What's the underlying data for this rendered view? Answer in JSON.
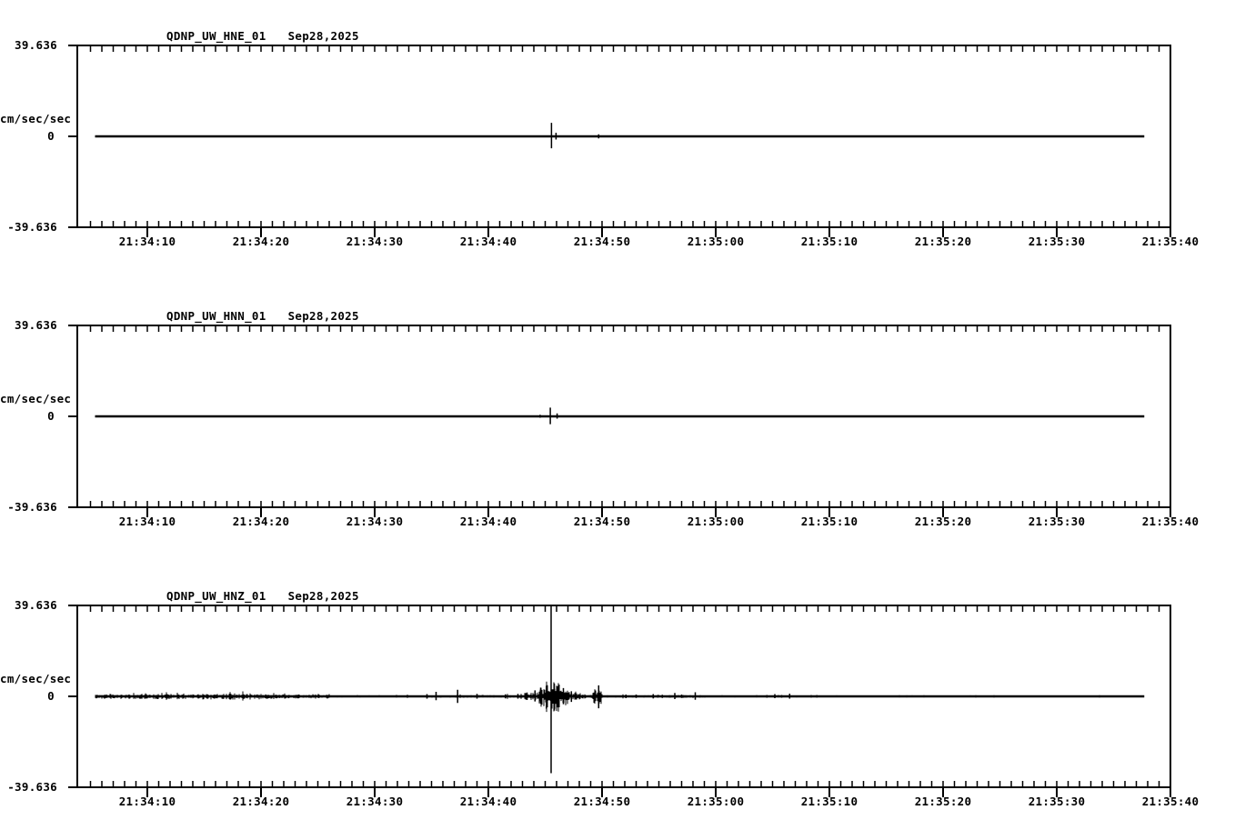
{
  "figure": {
    "background_color": "#ffffff",
    "ink_color": "#000000",
    "description": "Three-channel seismogram amplitude plot"
  },
  "y_axis": {
    "top": "39.636",
    "zero": "0",
    "bottom": "-39.636",
    "units": "cm/sec/sec",
    "ylim": [
      -39.636,
      39.636
    ]
  },
  "time_axis": {
    "reference": "21:34:00",
    "major_labels": [
      "21:34:10",
      "21:34:20",
      "21:34:30",
      "21:34:40",
      "21:34:50",
      "21:35:00",
      "21:35:10",
      "21:35:20",
      "21:35:30",
      "21:35:40"
    ],
    "major_seconds": [
      10,
      20,
      30,
      40,
      50,
      60,
      70,
      80,
      90,
      100
    ],
    "minor_step_s": 1,
    "visible_range_s": [
      3.84,
      100
    ]
  },
  "chart_data": [
    {
      "type": "line",
      "station": "QDNP_UW_HNE_01",
      "date": "Sep28,2025",
      "ylabel": "cm/sec/sec",
      "ylim": [
        -39.636,
        39.636
      ],
      "yticks": [
        "39.636",
        "0",
        "-39.636"
      ],
      "xticks": [
        "21:34:10",
        "21:34:20",
        "21:34:30",
        "21:34:40",
        "21:34:50",
        "21:35:00",
        "21:35:10",
        "21:35:20",
        "21:35:30",
        "21:35:40"
      ],
      "baseline_value": 0,
      "trace_span_s": [
        5.4,
        97.7
      ],
      "noise_bands": [],
      "spikes": [
        {
          "t": 45.55,
          "up": 5.9,
          "down": 5.2
        },
        {
          "t": 45.95,
          "up": 1.6,
          "down": 1.4
        },
        {
          "t": 49.7,
          "up": 0.9,
          "down": 0.9
        }
      ]
    },
    {
      "type": "line",
      "station": "QDNP_UW_HNN_01",
      "date": "Sep28,2025",
      "ylabel": "cm/sec/sec",
      "ylim": [
        -39.636,
        39.636
      ],
      "yticks": [
        "39.636",
        "0",
        "-39.636"
      ],
      "xticks": [
        "21:34:10",
        "21:34:20",
        "21:34:30",
        "21:34:40",
        "21:34:50",
        "21:35:00",
        "21:35:10",
        "21:35:20",
        "21:35:30",
        "21:35:40"
      ],
      "baseline_value": 0,
      "trace_span_s": [
        5.4,
        97.7
      ],
      "noise_bands": [],
      "spikes": [
        {
          "t": 44.55,
          "up": 0.7,
          "down": 0.6
        },
        {
          "t": 45.45,
          "up": 3.8,
          "down": 3.4
        },
        {
          "t": 46.05,
          "up": 1.3,
          "down": 1.0
        }
      ]
    },
    {
      "type": "line",
      "station": "QDNP_UW_HNZ_01",
      "date": "Sep28,2025",
      "ylabel": "cm/sec/sec",
      "ylim": [
        -39.636,
        39.636
      ],
      "yticks": [
        "39.636",
        "0",
        "-39.636"
      ],
      "xticks": [
        "21:34:10",
        "21:34:20",
        "21:34:30",
        "21:34:40",
        "21:34:50",
        "21:35:00",
        "21:35:10",
        "21:35:20",
        "21:35:30",
        "21:35:40"
      ],
      "baseline_value": 0,
      "trace_span_s": [
        5.4,
        97.7
      ],
      "noise_bands": [
        {
          "t0": 5.4,
          "t1": 14,
          "amp": 0.9
        },
        {
          "t0": 14,
          "t1": 20,
          "amp": 1.1
        },
        {
          "t0": 20,
          "t1": 26,
          "amp": 0.8
        },
        {
          "t0": 26,
          "t1": 34.5,
          "amp": 0.35
        },
        {
          "t0": 34.5,
          "t1": 43.2,
          "amp": 0.45
        },
        {
          "t0": 43.2,
          "t1": 44.3,
          "amp": 1.8
        },
        {
          "t0": 44.3,
          "t1": 45.1,
          "amp": 3.6
        },
        {
          "t0": 45.1,
          "t1": 46.3,
          "amp": 5.2
        },
        {
          "t0": 46.3,
          "t1": 47.2,
          "amp": 3.2
        },
        {
          "t0": 47.2,
          "t1": 48.0,
          "amp": 1.6
        },
        {
          "t0": 48.0,
          "t1": 49.3,
          "amp": 0.8
        },
        {
          "t0": 49.3,
          "t1": 50.0,
          "amp": 3.0
        },
        {
          "t0": 50.0,
          "t1": 54.0,
          "amp": 0.4
        },
        {
          "t0": 54.0,
          "t1": 59.0,
          "amp": 0.5
        },
        {
          "t0": 59.0,
          "t1": 69.0,
          "amp": 0.35
        },
        {
          "t0": 69.0,
          "t1": 97.7,
          "amp": 0.2
        }
      ],
      "spikes": [
        {
          "t": 34.6,
          "up": 1.0,
          "down": 1.0
        },
        {
          "t": 35.4,
          "up": 2.0,
          "down": 1.7
        },
        {
          "t": 37.3,
          "up": 2.9,
          "down": 2.9
        },
        {
          "t": 39.0,
          "up": 1.1,
          "down": 1.0
        },
        {
          "t": 41.5,
          "up": 0.9,
          "down": 0.9
        },
        {
          "t": 42.6,
          "up": 1.1,
          "down": 1.0
        },
        {
          "t": 43.4,
          "up": 1.7,
          "down": 1.6
        },
        {
          "t": 44.1,
          "up": 2.6,
          "down": 2.2
        },
        {
          "t": 44.6,
          "up": 3.8,
          "down": 3.2
        },
        {
          "t": 45.1,
          "up": 4.6,
          "down": 5.4
        },
        {
          "t": 45.52,
          "up": 39.6,
          "down": 33.5
        },
        {
          "t": 45.8,
          "up": 5.6,
          "down": 6.2
        },
        {
          "t": 46.1,
          "up": 4.4,
          "down": 4.8
        },
        {
          "t": 46.6,
          "up": 3.6,
          "down": 3.4
        },
        {
          "t": 47.3,
          "up": 2.2,
          "down": 2.4
        },
        {
          "t": 49.7,
          "up": 4.8,
          "down": 5.2
        },
        {
          "t": 52.1,
          "up": 0.8,
          "down": 0.8
        },
        {
          "t": 53.0,
          "up": 0.8,
          "down": 0.7
        },
        {
          "t": 54.5,
          "up": 1.0,
          "down": 0.9
        },
        {
          "t": 55.3,
          "up": 0.7,
          "down": 0.7
        },
        {
          "t": 56.4,
          "up": 1.5,
          "down": 1.2
        },
        {
          "t": 57.0,
          "up": 0.8,
          "down": 0.7
        },
        {
          "t": 58.2,
          "up": 1.8,
          "down": 1.5
        },
        {
          "t": 64.5,
          "up": 0.6,
          "down": 0.6
        },
        {
          "t": 65.2,
          "up": 1.0,
          "down": 0.8
        },
        {
          "t": 65.8,
          "up": 0.6,
          "down": 0.6
        },
        {
          "t": 66.5,
          "up": 1.2,
          "down": 1.0
        },
        {
          "t": 68.4,
          "up": 0.5,
          "down": 0.5
        },
        {
          "t": 68.9,
          "up": 0.5,
          "down": 0.5
        }
      ]
    }
  ]
}
